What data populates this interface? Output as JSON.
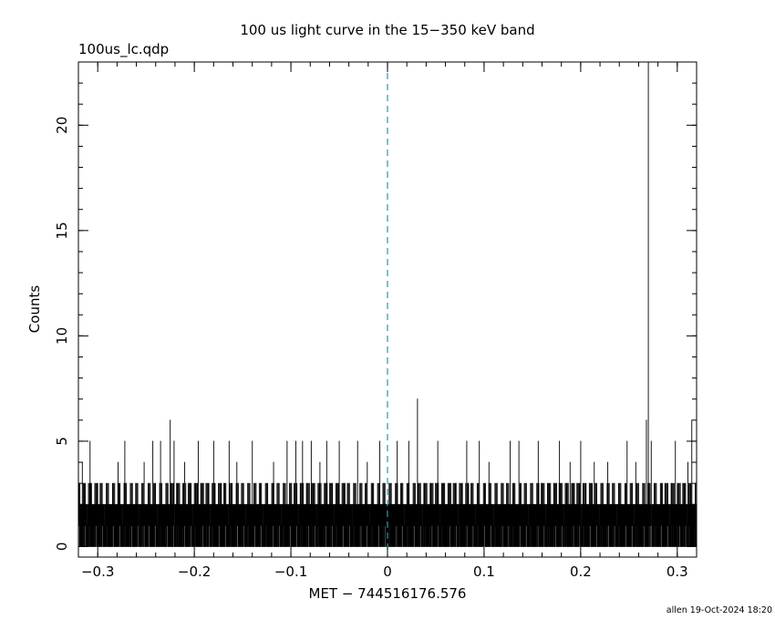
{
  "chart_data": {
    "type": "line",
    "title": "100 us light curve in the 15−350 keV band",
    "file_label": "100us_lc.qdp",
    "xlabel": "MET − 744516176.576",
    "ylabel": "Counts",
    "footer": "allen 19-Oct-2024 18:20",
    "xlim": [
      -0.32,
      0.32
    ],
    "ylim": [
      -0.5,
      23.0
    ],
    "x_ticks": [
      -0.3,
      -0.2,
      -0.1,
      0.0,
      0.1,
      0.2,
      0.3
    ],
    "x_tick_labels": [
      "−0.3",
      "−0.2",
      "−0.1",
      "0",
      "0.1",
      "0.2",
      "0.3"
    ],
    "y_ticks": [
      0,
      5,
      10,
      15,
      20
    ],
    "y_tick_labels": [
      "0",
      "5",
      "10",
      "15",
      "20"
    ],
    "bin_width": 0.0001,
    "marker_x": 0.0,
    "marker_color": "#1a9bb5",
    "line_color": "#000000",
    "baseline_counts": [
      0,
      1,
      1,
      2,
      1,
      0,
      1,
      2,
      3,
      1,
      0,
      1,
      2,
      1,
      1,
      3,
      0,
      1,
      2,
      1
    ],
    "peaks": [
      {
        "x": -0.316,
        "y": 4
      },
      {
        "x": -0.308,
        "y": 5
      },
      {
        "x": -0.279,
        "y": 4
      },
      {
        "x": -0.272,
        "y": 5
      },
      {
        "x": -0.252,
        "y": 4
      },
      {
        "x": -0.243,
        "y": 5
      },
      {
        "x": -0.235,
        "y": 5
      },
      {
        "x": -0.225,
        "y": 6
      },
      {
        "x": -0.221,
        "y": 5
      },
      {
        "x": -0.21,
        "y": 4
      },
      {
        "x": -0.196,
        "y": 5
      },
      {
        "x": -0.18,
        "y": 5
      },
      {
        "x": -0.164,
        "y": 5
      },
      {
        "x": -0.156,
        "y": 4
      },
      {
        "x": -0.14,
        "y": 5
      },
      {
        "x": -0.118,
        "y": 4
      },
      {
        "x": -0.104,
        "y": 5
      },
      {
        "x": -0.095,
        "y": 5
      },
      {
        "x": -0.088,
        "y": 5
      },
      {
        "x": -0.079,
        "y": 5
      },
      {
        "x": -0.07,
        "y": 4
      },
      {
        "x": -0.063,
        "y": 5
      },
      {
        "x": -0.05,
        "y": 5
      },
      {
        "x": -0.031,
        "y": 5
      },
      {
        "x": -0.021,
        "y": 4
      },
      {
        "x": -0.008,
        "y": 5
      },
      {
        "x": 0.01,
        "y": 5
      },
      {
        "x": 0.022,
        "y": 5
      },
      {
        "x": 0.031,
        "y": 7
      },
      {
        "x": 0.052,
        "y": 5
      },
      {
        "x": 0.082,
        "y": 5
      },
      {
        "x": 0.095,
        "y": 5
      },
      {
        "x": 0.105,
        "y": 4
      },
      {
        "x": 0.127,
        "y": 5
      },
      {
        "x": 0.136,
        "y": 5
      },
      {
        "x": 0.156,
        "y": 5
      },
      {
        "x": 0.178,
        "y": 5
      },
      {
        "x": 0.189,
        "y": 4
      },
      {
        "x": 0.2,
        "y": 5
      },
      {
        "x": 0.214,
        "y": 4
      },
      {
        "x": 0.228,
        "y": 4
      },
      {
        "x": 0.248,
        "y": 5
      },
      {
        "x": 0.257,
        "y": 4
      },
      {
        "x": 0.268,
        "y": 6
      },
      {
        "x": 0.27,
        "y": 23
      },
      {
        "x": 0.273,
        "y": 5
      },
      {
        "x": 0.298,
        "y": 5
      },
      {
        "x": 0.311,
        "y": 4
      },
      {
        "x": 0.315,
        "y": 6
      }
    ]
  }
}
